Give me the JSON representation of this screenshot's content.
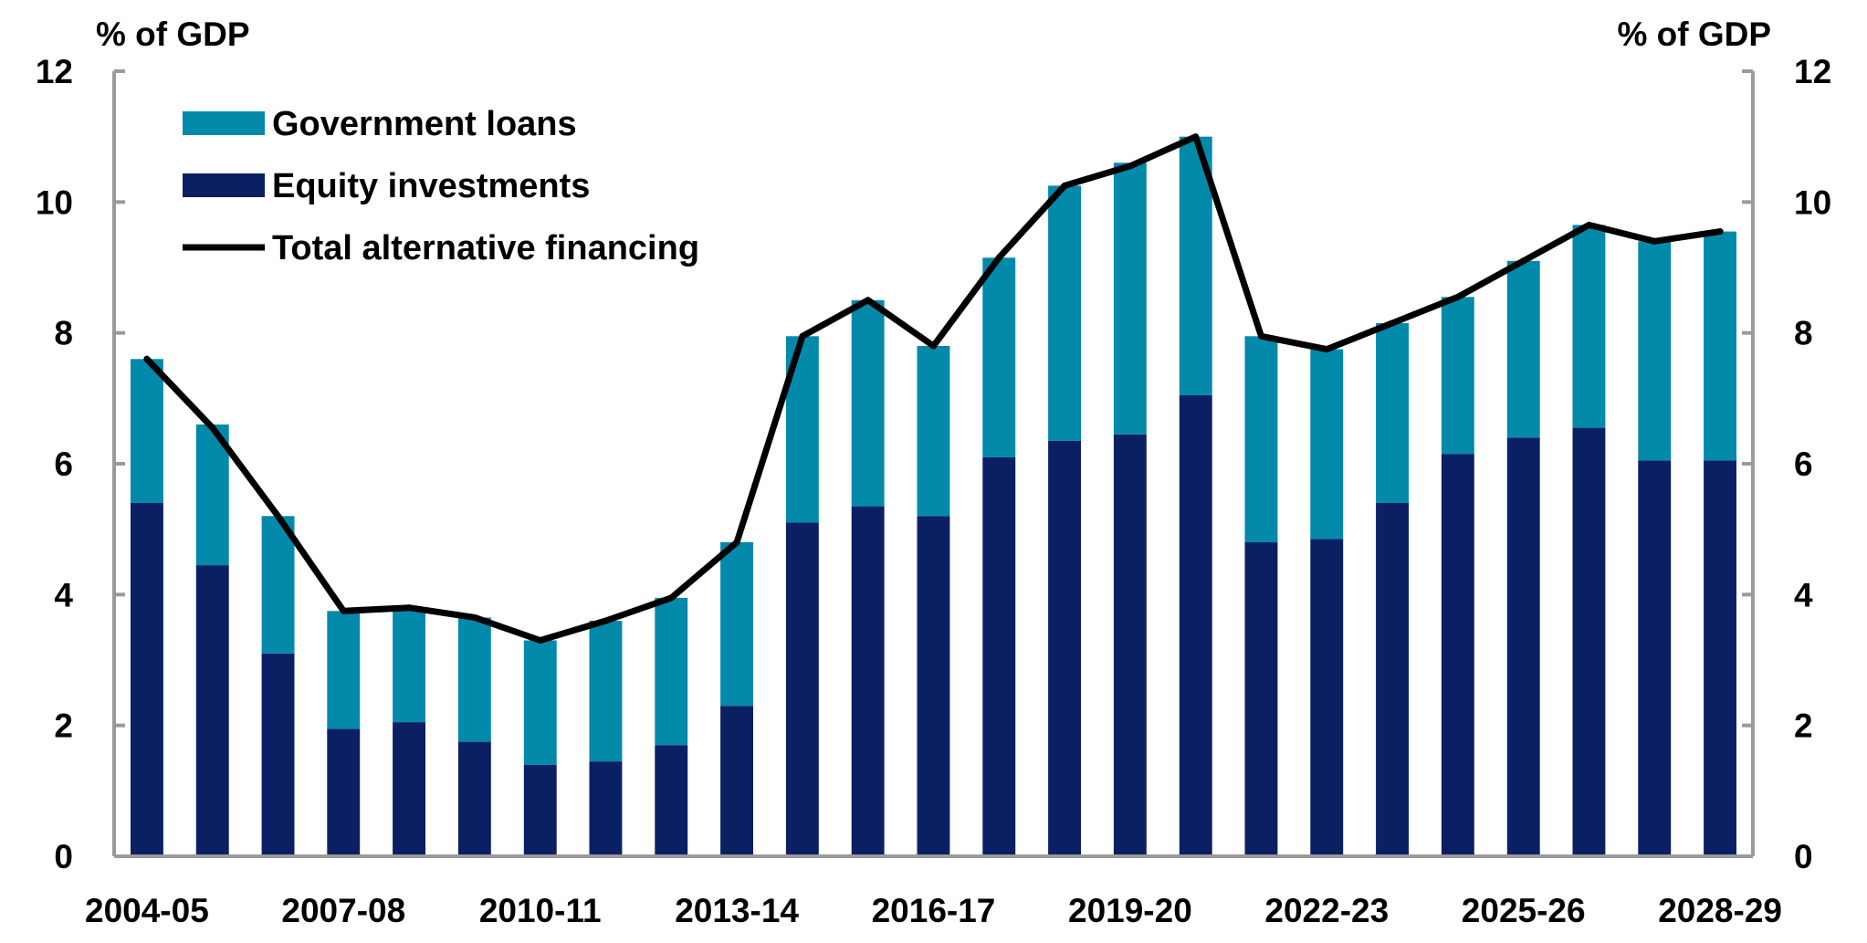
{
  "chart_data": {
    "type": "bar",
    "stacked": true,
    "y_unit_left": "% of GDP",
    "y_unit_right": "% of GDP",
    "ylim": [
      0,
      12
    ],
    "yticks": [
      0,
      2,
      4,
      6,
      8,
      10,
      12
    ],
    "xtick_labels": [
      "2004-05",
      "2007-08",
      "2010-11",
      "2013-14",
      "2016-17",
      "2019-20",
      "2022-23",
      "2025-26",
      "2028-29"
    ],
    "categories": [
      "2004-05",
      "2005-06",
      "2006-07",
      "2007-08",
      "2008-09",
      "2009-10",
      "2010-11",
      "2011-12",
      "2012-13",
      "2013-14",
      "2014-15",
      "2015-16",
      "2016-17",
      "2017-18",
      "2018-19",
      "2019-20",
      "2020-21",
      "2021-22",
      "2022-23",
      "2023-24",
      "2024-25",
      "2025-26",
      "2026-27",
      "2027-28",
      "2028-29"
    ],
    "series": [
      {
        "name": "Equity investments",
        "kind": "bar",
        "color": "#0b2063",
        "values": [
          5.4,
          4.45,
          3.1,
          1.95,
          2.05,
          1.75,
          1.4,
          1.45,
          1.7,
          2.3,
          5.1,
          5.35,
          5.2,
          6.1,
          6.35,
          6.45,
          7.05,
          4.8,
          4.85,
          5.4,
          6.15,
          6.4,
          6.55,
          6.05,
          6.05
        ]
      },
      {
        "name": "Government loans",
        "kind": "bar",
        "color": "#0389aa",
        "values": [
          2.2,
          2.15,
          2.1,
          1.8,
          1.75,
          1.9,
          1.9,
          2.15,
          2.25,
          2.5,
          2.85,
          3.15,
          2.6,
          3.05,
          3.9,
          4.15,
          3.95,
          3.15,
          2.9,
          2.75,
          2.4,
          2.7,
          3.1,
          3.35,
          3.5
        ]
      },
      {
        "name": "Total alternative financing",
        "kind": "line",
        "color": "#000000",
        "values": [
          7.6,
          6.55,
          5.2,
          3.75,
          3.8,
          3.65,
          3.3,
          3.6,
          3.95,
          4.8,
          7.95,
          8.5,
          7.8,
          9.15,
          10.25,
          10.55,
          11.0,
          7.95,
          7.75,
          8.15,
          8.55,
          9.1,
          9.65,
          9.4,
          9.55
        ]
      }
    ],
    "legend": {
      "position": "top-left",
      "entries": [
        "Government loans",
        "Equity investments",
        "Total alternative financing"
      ]
    },
    "grid": false
  }
}
